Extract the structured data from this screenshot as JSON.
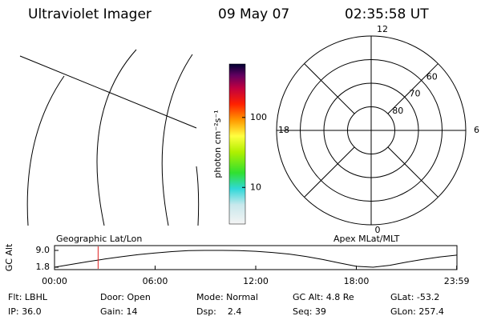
{
  "header": {
    "title": "Ultraviolet Imager",
    "date": "09 May 07",
    "time": "02:35:58 UT"
  },
  "colorbar": {
    "label": "photon cm⁻²s⁻¹",
    "clim": [
      3,
      580
    ],
    "log": true,
    "ticks": [
      10,
      100
    ]
  },
  "polar": {
    "mlt_labels": [
      "12",
      "6",
      "0",
      "18"
    ],
    "lat_labels": [
      60,
      70,
      80
    ],
    "rlim": [
      90,
      50
    ]
  },
  "chart_data": {
    "type": "line",
    "ylabel": "GC Alt",
    "left_label": "Geographic Lat/Lon",
    "right_label": "Apex MLat/MLT",
    "x": [
      0,
      1,
      2,
      3,
      4,
      5,
      6,
      7,
      8,
      9,
      10,
      11,
      12,
      13,
      14,
      15,
      16,
      17,
      18,
      19,
      20,
      21,
      22,
      23,
      24
    ],
    "values": [
      1.8,
      3.0,
      4.2,
      5.3,
      6.3,
      7.2,
      7.9,
      8.5,
      8.9,
      9.0,
      9.0,
      8.9,
      8.6,
      8.1,
      7.4,
      6.4,
      5.1,
      3.6,
      2.2,
      1.8,
      2.6,
      4.0,
      5.2,
      6.2,
      7.0
    ],
    "color": "#000000",
    "xlim": [
      0,
      24
    ],
    "xticks": [
      {
        "value": 0,
        "label": "00:00"
      },
      {
        "value": 6,
        "label": "06:00"
      },
      {
        "value": 12,
        "label": "12:00"
      },
      {
        "value": 18,
        "label": "18:00"
      },
      {
        "value": 23.983,
        "label": "23:59"
      }
    ],
    "ylim": [
      1.8,
      9.0
    ],
    "yticks": [
      {
        "value": 1.8,
        "label": "1.8"
      },
      {
        "value": 9.0,
        "label": "9.0"
      }
    ],
    "marker_x": 2.6,
    "marker_color": "#e02020"
  },
  "info": [
    [
      "Flt: LBHL",
      "Door: Open",
      "Mode: Normal",
      "GC Alt: 4.8 Re",
      "GLat: -53.2"
    ],
    [
      "IP: 36.0",
      "Gain: 14",
      "Dsp:    2.4",
      "Seq: 39",
      "GLon: 257.4"
    ]
  ]
}
